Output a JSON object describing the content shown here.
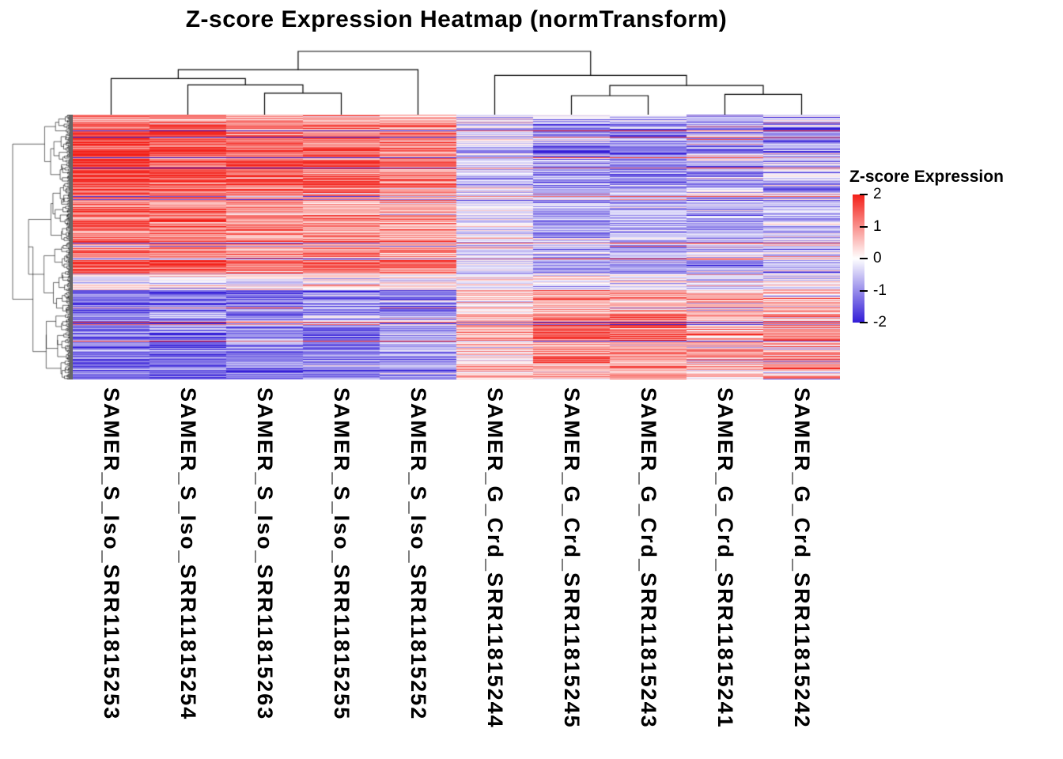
{
  "chart_data": {
    "type": "heatmap",
    "title": "Z-score Expression Heatmap (normTransform)",
    "columns": [
      "SAMER_S_Iso_SRR11815253",
      "SAMER_S_Iso_SRR11815254",
      "SAMER_S_Iso_SRR11815263",
      "SAMER_S_Iso_SRR11815255",
      "SAMER_S_Iso_SRR11815252",
      "SAMER_G_Crd_SRR11815244",
      "SAMER_G_Crd_SRR11815245",
      "SAMER_G_Crd_SRR11815243",
      "SAMER_G_Crd_SRR11815241",
      "SAMER_G_Crd_SRR11815242"
    ],
    "column_groups": [
      {
        "name": "S_Iso",
        "columns": [
          0,
          1,
          2,
          3,
          4
        ]
      },
      {
        "name": "G_Crd",
        "columns": [
          5,
          6,
          7,
          8,
          9
        ]
      }
    ],
    "legend": {
      "title": "Z-score Expression",
      "tick_labels": [
        "2",
        "1",
        "0",
        "-1",
        "-2"
      ],
      "tick_values": [
        2,
        1,
        0,
        -1,
        -2
      ],
      "domain": [
        -2,
        2
      ]
    },
    "colorscale": {
      "high": "#F32019",
      "mid": "#FFFFFF",
      "low": "#321CD7"
    },
    "column_dendrogram": {
      "h": 1.0,
      "l": {
        "h": 0.71,
        "l": {
          "h": 0.57,
          "l": {
            "leaf": 0
          },
          "r": {
            "h": 0.47,
            "l": {
              "leaf": 1
            },
            "r": {
              "h": 0.34,
              "l": {
                "leaf": 2
              },
              "r": {
                "leaf": 3
              }
            }
          }
        },
        "r": {
          "leaf": 4
        }
      },
      "r": {
        "h": 0.62,
        "l": {
          "leaf": 5
        },
        "r": {
          "h": 0.46,
          "l": {
            "h": 0.3,
            "l": {
              "leaf": 6
            },
            "r": {
              "leaf": 7
            }
          },
          "r": {
            "h": 0.32,
            "l": {
              "leaf": 8
            },
            "r": {
              "leaf": 9
            }
          }
        }
      }
    },
    "row_dendrogram": {
      "n_leaves": 335,
      "seed": 7
    },
    "pattern": {
      "seed": 42,
      "n_rows": 335,
      "flip_prob": 0.045,
      "bands": [
        {
          "from": 0.0,
          "to": 0.035,
          "s": 0.8,
          "g": -0.5
        },
        {
          "from": 0.035,
          "to": 0.28,
          "s": 1.5,
          "g": -1.1
        },
        {
          "from": 0.28,
          "to": 0.55,
          "s": 1.1,
          "g": -0.8
        },
        {
          "from": 0.55,
          "to": 0.6,
          "s": 1.6,
          "g": -1.2
        },
        {
          "from": 0.6,
          "to": 0.66,
          "s": 0.1,
          "g": -0.1
        },
        {
          "from": 0.66,
          "to": 0.75,
          "s": -1.3,
          "g": 0.9
        },
        {
          "from": 0.75,
          "to": 0.86,
          "s": -1.0,
          "g": 1.4
        },
        {
          "from": 0.86,
          "to": 1.0,
          "s": -1.2,
          "g": 0.9
        }
      ],
      "column_scale": [
        1.2,
        1.15,
        1.0,
        0.95,
        0.8,
        0.45,
        1.0,
        1.05,
        0.7,
        0.75
      ],
      "column_noise": [
        0.45,
        0.5,
        0.5,
        0.5,
        0.55,
        0.5,
        0.55,
        0.5,
        0.8,
        0.8
      ]
    }
  }
}
